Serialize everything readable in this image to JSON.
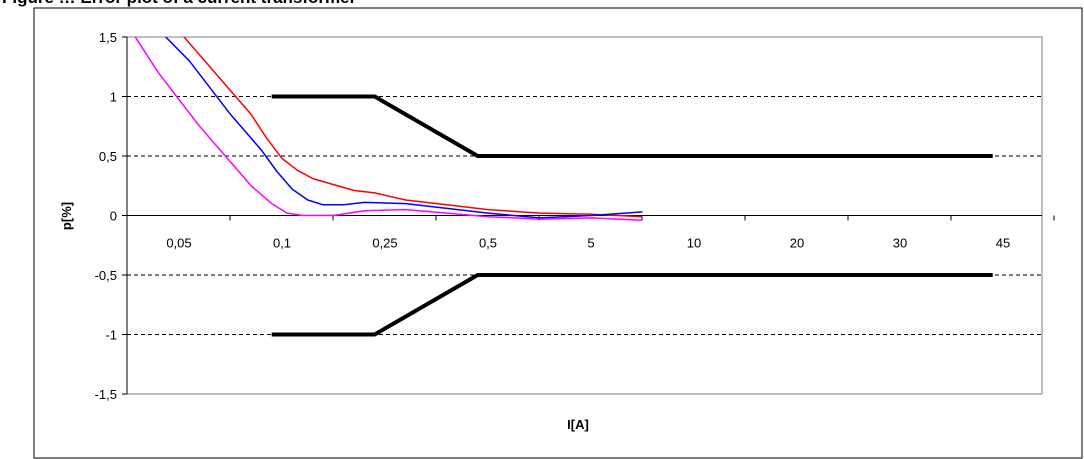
{
  "page_title": "Figure … Error plot of a current transformer",
  "chart_data": {
    "type": "line",
    "title": "",
    "xlabel": "I[A]",
    "ylabel": "p[%]",
    "categories": [
      "0,05",
      "0,1",
      "0,25",
      "0,5",
      "5",
      "10",
      "20",
      "30",
      "45"
    ],
    "y_ticks": [
      "1,5",
      "1",
      "0,5",
      "0",
      "-0,5",
      "-1",
      "-1,5"
    ],
    "ylim": [
      -1.5,
      1.5
    ],
    "grid": "dashed horizontal",
    "series": [
      {
        "color": "#000000",
        "kind": "upper-limit",
        "points": [
          [
            0.9,
            1.0
          ],
          [
            1.9,
            1.0
          ],
          [
            2.9,
            0.5
          ],
          [
            7.9,
            0.5
          ]
        ]
      },
      {
        "color": "#000000",
        "kind": "lower-limit",
        "points": [
          [
            0.9,
            -1.0
          ],
          [
            1.9,
            -1.0
          ],
          [
            2.9,
            -0.5
          ],
          [
            7.9,
            -0.5
          ]
        ]
      },
      {
        "color": "#ff0000",
        "points": [
          [
            -0.1,
            1.65
          ],
          [
            0.4,
            1.15
          ],
          [
            0.7,
            0.85
          ],
          [
            0.85,
            0.65
          ],
          [
            1.0,
            0.48
          ],
          [
            1.15,
            0.38
          ],
          [
            1.3,
            0.31
          ],
          [
            1.5,
            0.26
          ],
          [
            1.7,
            0.21
          ],
          [
            1.9,
            0.19
          ],
          [
            2.2,
            0.13
          ],
          [
            2.6,
            0.09
          ],
          [
            3.0,
            0.05
          ],
          [
            3.5,
            0.02
          ],
          [
            4.0,
            0.01
          ],
          [
            4.5,
            -0.01
          ]
        ]
      },
      {
        "color": "#0000ff",
        "points": [
          [
            -0.3,
            1.65
          ],
          [
            0.1,
            1.3
          ],
          [
            0.5,
            0.85
          ],
          [
            0.8,
            0.55
          ],
          [
            0.95,
            0.37
          ],
          [
            1.1,
            0.22
          ],
          [
            1.25,
            0.13
          ],
          [
            1.4,
            0.09
          ],
          [
            1.6,
            0.09
          ],
          [
            1.8,
            0.11
          ],
          [
            2.2,
            0.1
          ],
          [
            2.6,
            0.06
          ],
          [
            3.0,
            0.02
          ],
          [
            3.5,
            -0.02
          ],
          [
            4.0,
            0.0
          ],
          [
            4.5,
            0.03
          ]
        ]
      },
      {
        "color": "#ff00ff",
        "points": [
          [
            -0.5,
            1.6
          ],
          [
            -0.2,
            1.2
          ],
          [
            0.2,
            0.75
          ],
          [
            0.5,
            0.45
          ],
          [
            0.7,
            0.25
          ],
          [
            0.9,
            0.1
          ],
          [
            1.05,
            0.02
          ],
          [
            1.2,
            0.0
          ],
          [
            1.5,
            0.0
          ],
          [
            1.8,
            0.04
          ],
          [
            2.2,
            0.05
          ],
          [
            2.6,
            0.02
          ],
          [
            3.0,
            -0.01
          ],
          [
            3.5,
            -0.03
          ],
          [
            4.0,
            -0.02
          ],
          [
            4.5,
            -0.04
          ]
        ]
      }
    ]
  }
}
